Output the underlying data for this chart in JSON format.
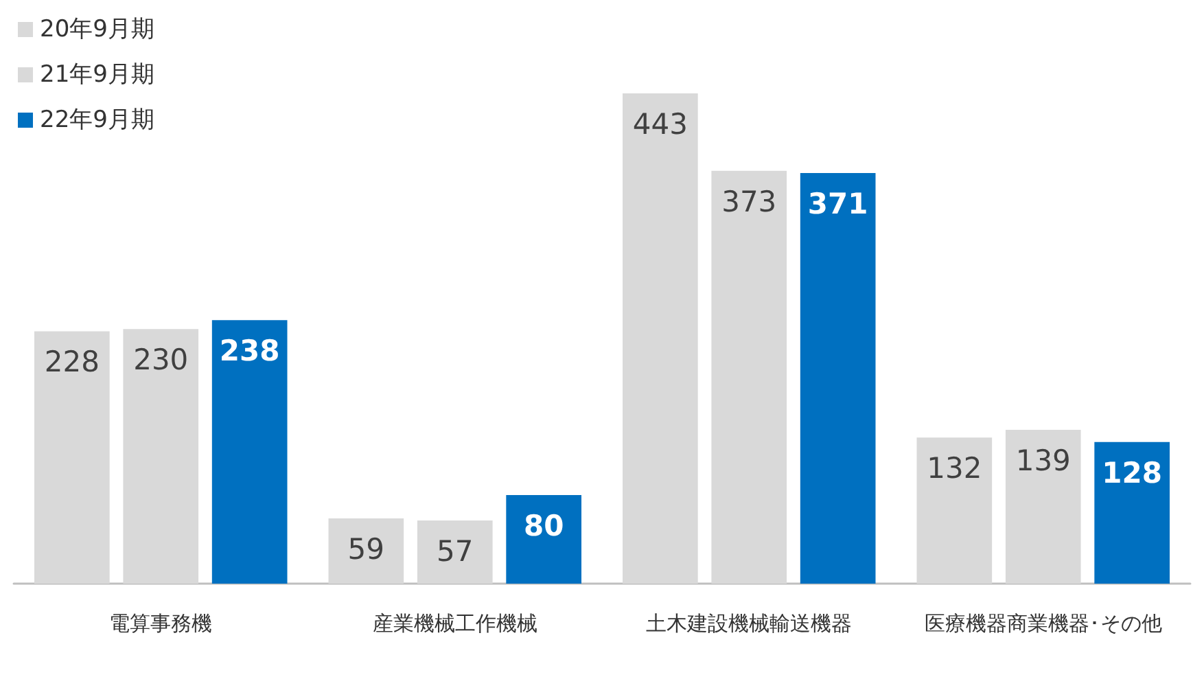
{
  "chart_data": {
    "type": "bar",
    "categories": [
      "電算事務機",
      "産業機械工作機械",
      "土木建設機械輸送機器",
      "医療機器商業機器･その他"
    ],
    "series": [
      {
        "name": "20年9月期",
        "color": "#d9d9d9",
        "values": [
          228,
          59,
          443,
          132
        ]
      },
      {
        "name": "21年9月期",
        "color": "#d9d9d9",
        "values": [
          230,
          57,
          373,
          139
        ]
      },
      {
        "name": "22年9月期",
        "color": "#0070c0",
        "values": [
          238,
          80,
          371,
          128
        ]
      }
    ],
    "tick_labels": "x",
    "data_labels": true,
    "legend": "top left"
  }
}
